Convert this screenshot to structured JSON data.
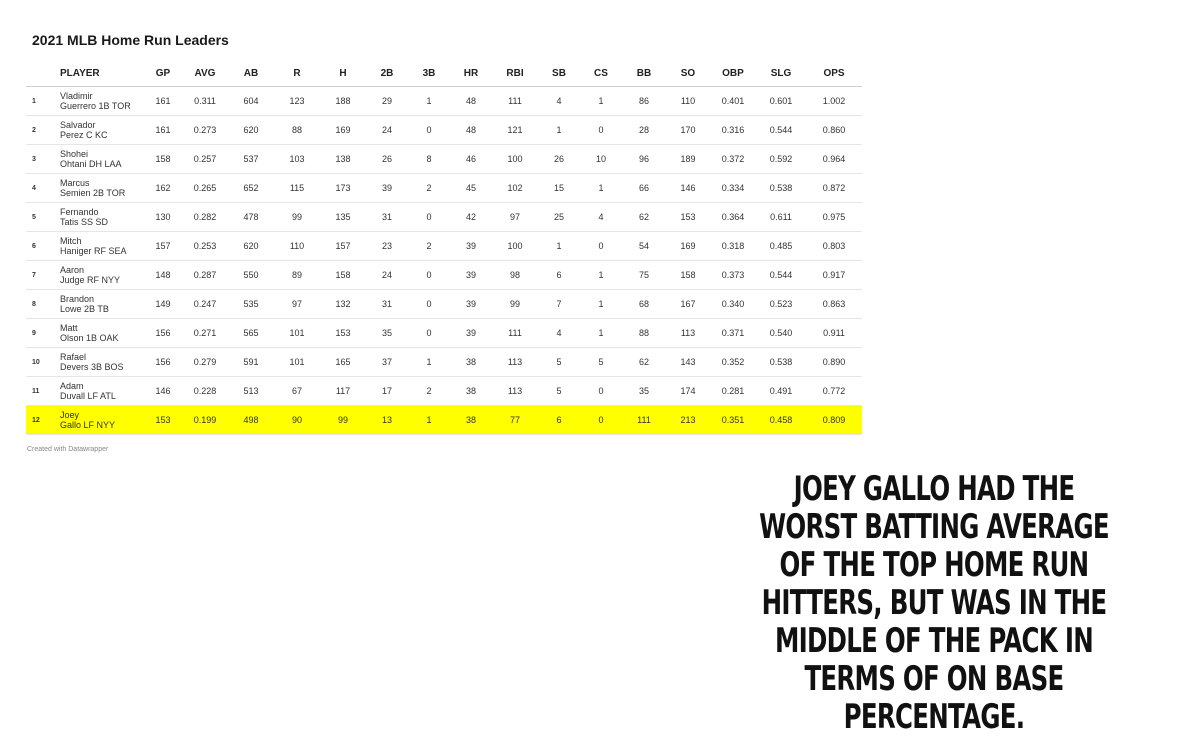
{
  "title": "2021 MLB Home Run Leaders",
  "credit": "Created with Datawrapper",
  "caption": "Joey Gallo had the worst batting average of the top home run hitters, but was in the middle of the pack in terms of on base percentage.",
  "highlight_color": "#ffff00",
  "chart_data": {
    "type": "table",
    "title": "2021 MLB Home Run Leaders",
    "columns": [
      "",
      "PLAYER",
      "GP",
      "AVG",
      "AB",
      "R",
      "H",
      "2B",
      "3B",
      "HR",
      "RBI",
      "SB",
      "CS",
      "BB",
      "SO",
      "OBP",
      "SLG",
      "OPS"
    ],
    "rows": [
      {
        "rank": "1",
        "first": "Vladimir",
        "second": "Guerrero 1B  TOR",
        "GP": "161",
        "AVG": "0.311",
        "AB": "604",
        "R": "123",
        "H": "188",
        "2B": "29",
        "3B": "1",
        "HR": "48",
        "RBI": "111",
        "SB": "4",
        "CS": "1",
        "BB": "86",
        "SO": "110",
        "OBP": "0.401",
        "SLG": "0.601",
        "OPS": "1.002"
      },
      {
        "rank": "2",
        "first": "Salvador",
        "second": "Perez C  KC",
        "GP": "161",
        "AVG": "0.273",
        "AB": "620",
        "R": "88",
        "H": "169",
        "2B": "24",
        "3B": "0",
        "HR": "48",
        "RBI": "121",
        "SB": "1",
        "CS": "0",
        "BB": "28",
        "SO": "170",
        "OBP": "0.316",
        "SLG": "0.544",
        "OPS": "0.860"
      },
      {
        "rank": "3",
        "first": "Shohei",
        "second": "Ohtani DH  LAA",
        "GP": "158",
        "AVG": "0.257",
        "AB": "537",
        "R": "103",
        "H": "138",
        "2B": "26",
        "3B": "8",
        "HR": "46",
        "RBI": "100",
        "SB": "26",
        "CS": "10",
        "BB": "96",
        "SO": "189",
        "OBP": "0.372",
        "SLG": "0.592",
        "OPS": "0.964"
      },
      {
        "rank": "4",
        "first": "Marcus",
        "second": "Semien 2B  TOR",
        "GP": "162",
        "AVG": "0.265",
        "AB": "652",
        "R": "115",
        "H": "173",
        "2B": "39",
        "3B": "2",
        "HR": "45",
        "RBI": "102",
        "SB": "15",
        "CS": "1",
        "BB": "66",
        "SO": "146",
        "OBP": "0.334",
        "SLG": "0.538",
        "OPS": "0.872"
      },
      {
        "rank": "5",
        "first": "Fernando",
        "second": "Tatis SS  SD",
        "GP": "130",
        "AVG": "0.282",
        "AB": "478",
        "R": "99",
        "H": "135",
        "2B": "31",
        "3B": "0",
        "HR": "42",
        "RBI": "97",
        "SB": "25",
        "CS": "4",
        "BB": "62",
        "SO": "153",
        "OBP": "0.364",
        "SLG": "0.611",
        "OPS": "0.975"
      },
      {
        "rank": "6",
        "first": "Mitch",
        "second": "Haniger RF  SEA",
        "GP": "157",
        "AVG": "0.253",
        "AB": "620",
        "R": "110",
        "H": "157",
        "2B": "23",
        "3B": "2",
        "HR": "39",
        "RBI": "100",
        "SB": "1",
        "CS": "0",
        "BB": "54",
        "SO": "169",
        "OBP": "0.318",
        "SLG": "0.485",
        "OPS": "0.803"
      },
      {
        "rank": "7",
        "first": "Aaron",
        "second": "Judge RF  NYY",
        "GP": "148",
        "AVG": "0.287",
        "AB": "550",
        "R": "89",
        "H": "158",
        "2B": "24",
        "3B": "0",
        "HR": "39",
        "RBI": "98",
        "SB": "6",
        "CS": "1",
        "BB": "75",
        "SO": "158",
        "OBP": "0.373",
        "SLG": "0.544",
        "OPS": "0.917"
      },
      {
        "rank": "8",
        "first": "Brandon",
        "second": "Lowe 2B  TB",
        "GP": "149",
        "AVG": "0.247",
        "AB": "535",
        "R": "97",
        "H": "132",
        "2B": "31",
        "3B": "0",
        "HR": "39",
        "RBI": "99",
        "SB": "7",
        "CS": "1",
        "BB": "68",
        "SO": "167",
        "OBP": "0.340",
        "SLG": "0.523",
        "OPS": "0.863"
      },
      {
        "rank": "9",
        "first": "Matt",
        "second": "Olson 1B  OAK",
        "GP": "156",
        "AVG": "0.271",
        "AB": "565",
        "R": "101",
        "H": "153",
        "2B": "35",
        "3B": "0",
        "HR": "39",
        "RBI": "111",
        "SB": "4",
        "CS": "1",
        "BB": "88",
        "SO": "113",
        "OBP": "0.371",
        "SLG": "0.540",
        "OPS": "0.911"
      },
      {
        "rank": "10",
        "first": "Rafael",
        "second": "Devers 3B  BOS",
        "GP": "156",
        "AVG": "0.279",
        "AB": "591",
        "R": "101",
        "H": "165",
        "2B": "37",
        "3B": "1",
        "HR": "38",
        "RBI": "113",
        "SB": "5",
        "CS": "5",
        "BB": "62",
        "SO": "143",
        "OBP": "0.352",
        "SLG": "0.538",
        "OPS": "0.890"
      },
      {
        "rank": "11",
        "first": "Adam",
        "second": "Duvall LF  ATL",
        "GP": "146",
        "AVG": "0.228",
        "AB": "513",
        "R": "67",
        "H": "117",
        "2B": "17",
        "3B": "2",
        "HR": "38",
        "RBI": "113",
        "SB": "5",
        "CS": "0",
        "BB": "35",
        "SO": "174",
        "OBP": "0.281",
        "SLG": "0.491",
        "OPS": "0.772"
      },
      {
        "rank": "12",
        "first": "Joey",
        "second": "Gallo LF  NYY",
        "GP": "153",
        "AVG": "0.199",
        "AB": "498",
        "R": "90",
        "H": "99",
        "2B": "13",
        "3B": "1",
        "HR": "38",
        "RBI": "77",
        "SB": "6",
        "CS": "0",
        "BB": "111",
        "SO": "213",
        "OBP": "0.351",
        "SLG": "0.458",
        "OPS": "0.809",
        "highlight": true
      }
    ]
  }
}
